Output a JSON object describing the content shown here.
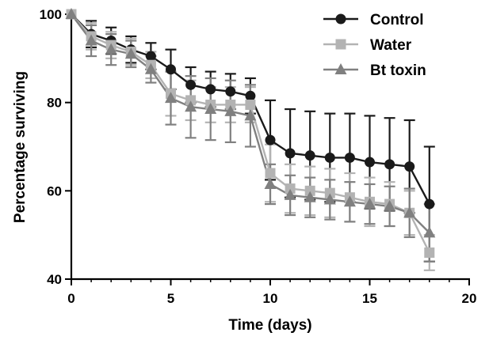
{
  "chart_data": {
    "type": "line",
    "xlabel": "Time (days)",
    "ylabel": "Percentage surviving",
    "xlim": [
      0,
      20
    ],
    "ylim": [
      40,
      100
    ],
    "xticks": [
      0,
      5,
      10,
      15,
      20
    ],
    "yticks": [
      40,
      60,
      80,
      100
    ],
    "grid": false,
    "legend_position": "top-right",
    "x": [
      0,
      1,
      2,
      3,
      4,
      5,
      6,
      7,
      8,
      9,
      10,
      11,
      12,
      13,
      14,
      15,
      16,
      17,
      18
    ],
    "series": [
      {
        "name": "Control",
        "color": "#1a1a1a",
        "marker": "circle",
        "values": [
          100,
          95.5,
          94,
          92,
          90.5,
          87.5,
          84,
          83,
          82.5,
          81.5,
          71.5,
          68.5,
          68,
          67.5,
          67.5,
          66.5,
          66,
          65.5,
          57
        ],
        "error": [
          0,
          3,
          3,
          3,
          3,
          4.5,
          4,
          4,
          4,
          4,
          9,
          10,
          10,
          10,
          10,
          10.5,
          10.5,
          10.5,
          13
        ]
      },
      {
        "name": "Water",
        "color": "#b3b3b3",
        "marker": "square",
        "values": [
          100,
          95,
          93,
          91.5,
          88.5,
          82,
          80.5,
          79.5,
          79.5,
          79.5,
          64,
          60.5,
          60,
          59.5,
          58.5,
          57.5,
          57,
          55,
          46
        ],
        "error": [
          0,
          3,
          3,
          3,
          3,
          5,
          4.5,
          4,
          4,
          4,
          6.5,
          5.5,
          5.5,
          5.5,
          5.5,
          5.5,
          5,
          5,
          4
        ]
      },
      {
        "name": "Bt toxin",
        "color": "#808080",
        "marker": "triangle",
        "values": [
          100,
          94,
          92,
          91,
          87.5,
          81,
          79,
          78.5,
          78,
          77,
          61.5,
          59,
          58.5,
          58,
          57.5,
          57,
          56.5,
          55,
          50.5
        ],
        "error": [
          0,
          3.5,
          3.5,
          3,
          3,
          6,
          7,
          7,
          7,
          7,
          4.5,
          4.5,
          4.5,
          4.5,
          4.5,
          4.5,
          4.5,
          5.5,
          6.5
        ]
      }
    ]
  }
}
